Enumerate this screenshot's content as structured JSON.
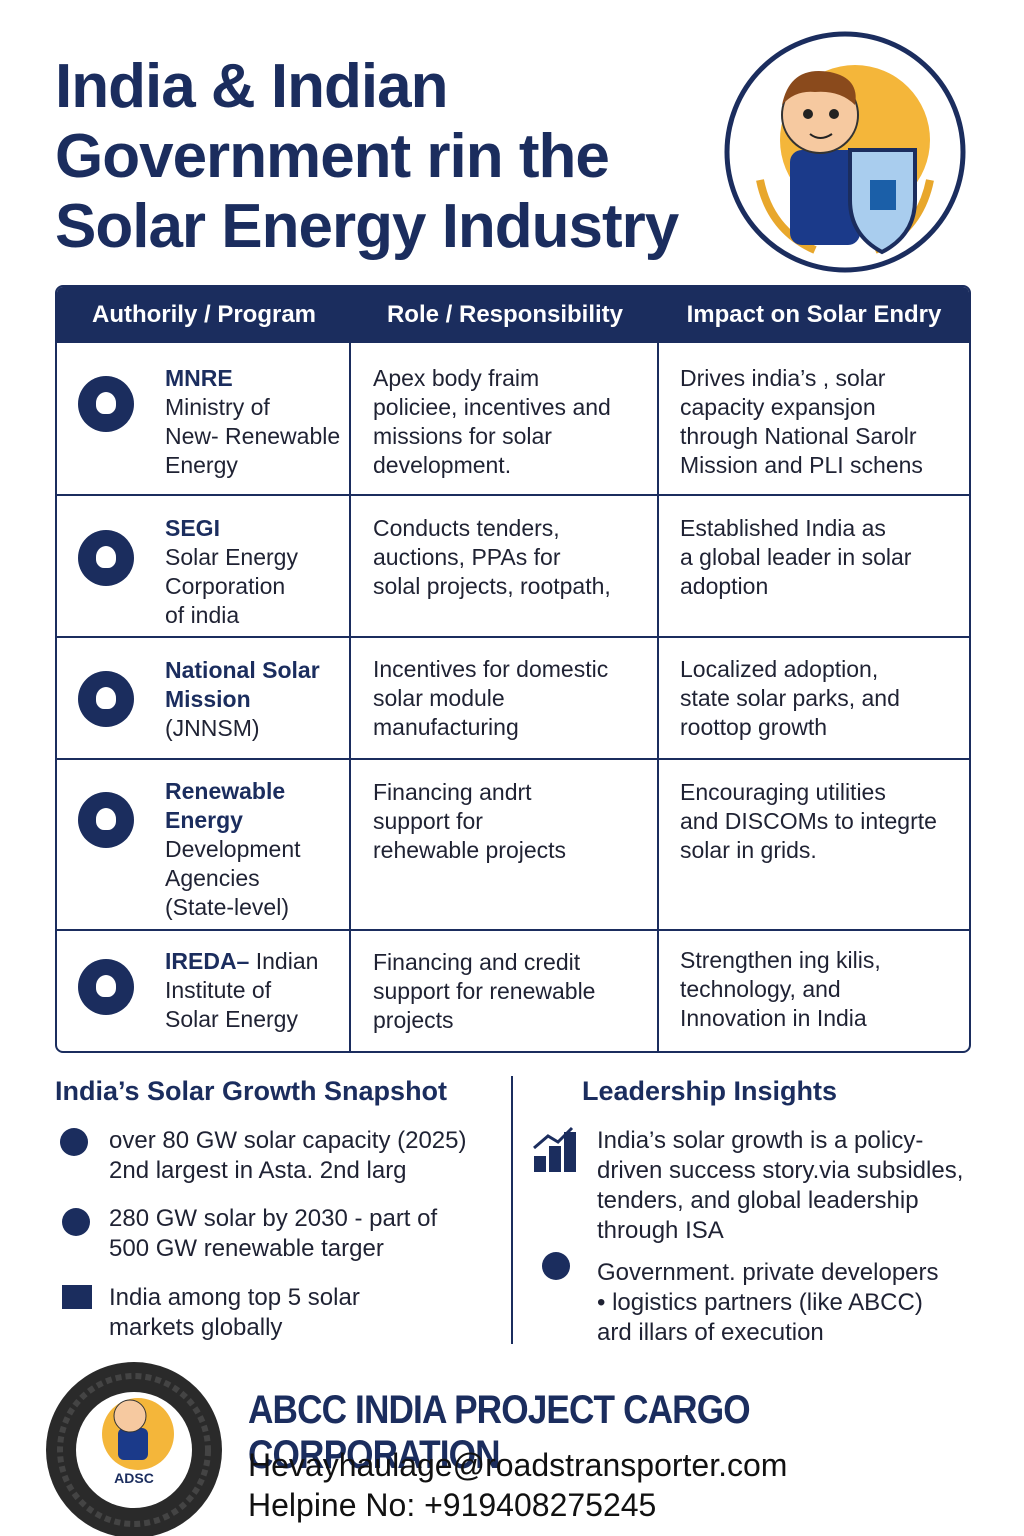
{
  "header": {
    "title_lines": [
      "India & Indian",
      "Government rin the",
      "Solar Energy Industry"
    ]
  },
  "table": {
    "headers": [
      "Authorily / Program",
      "Role / Responsibility",
      "Impact on Solar Endry"
    ],
    "rows": [
      {
        "name": [
          "MNRE"
        ],
        "detail": [
          "Ministry of",
          "New- Renewable",
          "Energy"
        ],
        "role": [
          "Apex body fraim",
          "policiee, incentives and",
          "missions for solar",
          "development."
        ],
        "impact": [
          "Drives india’s , solar",
          "capacity expansjon",
          "through National Sarolr",
          "Mission and PLI schens"
        ]
      },
      {
        "name": [
          "SEGI"
        ],
        "detail": [
          "Solar Energy",
          "Corporation",
          "of india"
        ],
        "role": [
          "Conducts tenders,",
          "auctions, PPAs for",
          "solal projects, rootpath,"
        ],
        "impact": [
          "Established India as",
          "a global leader in solar",
          "adoption"
        ]
      },
      {
        "name": [
          "National Solar",
          "Mission"
        ],
        "detail": [
          "(JNNSM)"
        ],
        "role": [
          "Incentives for domestic",
          "solar module",
          "manufacturing"
        ],
        "impact": [
          "Localized adoption,",
          "state solar parks, and",
          "roottop growth"
        ]
      },
      {
        "name": [
          "Renewable",
          "Energy"
        ],
        "detail": [
          "Development",
          "Agencies",
          "(State-level)"
        ],
        "role": [
          "Financing andrt",
          "support for",
          "rehewable projects"
        ],
        "impact": [
          "Encouraging utilities",
          "and DISCOMs to integrte",
          "solar in grids."
        ]
      },
      {
        "name": [
          "IREDA–"
        ],
        "detail": [
          "Indian",
          "Institute of",
          "Solar Energy"
        ],
        "role": [
          "Financing and credit",
          "support for renewable",
          "projects"
        ],
        "impact": [
          "Strengthen ing kilis,",
          "technology, and",
          "Innovation in India"
        ]
      }
    ]
  },
  "snapshot": {
    "title": "India’s Solar Growth Snapshot",
    "items": [
      [
        "over 80 GW solar capacity (2025)",
        "2nd largest in Asta. 2nd larg"
      ],
      [
        "280 GW solar by 2030 - part of",
        "500 GW renewable targer"
      ],
      [
        "India among top 5 solar",
        "markets globally"
      ]
    ]
  },
  "insights": {
    "title": "Leadership Insights",
    "items": [
      [
        "India’s solar growth is a policy-",
        "driven success story.via subsidles,",
        "tenders, and global leadership",
        "through ISA"
      ],
      [
        "Government. private developers",
        "• logistics partners (like ABCC)",
        "ard illars of execution"
      ]
    ]
  },
  "footer": {
    "logo_text": "ADSC",
    "company": "ABCC INDIA PROJECT CARGO CORPORATION",
    "email": "Hevayhaulage@roadstransporter.com",
    "phone": "Helpine No: +919408275245"
  }
}
